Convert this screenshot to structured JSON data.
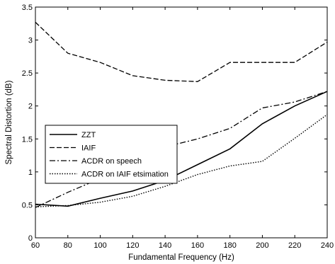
{
  "chart_data": {
    "type": "line",
    "title": "",
    "xlabel": "Fundamental Frequency (Hz)",
    "ylabel": "Spectral Distortion (dB)",
    "xlim": [
      60,
      240
    ],
    "ylim": [
      0,
      3.5
    ],
    "xticks": [
      60,
      80,
      100,
      120,
      140,
      160,
      180,
      200,
      220,
      240
    ],
    "yticks": [
      0,
      0.5,
      1,
      1.5,
      2,
      2.5,
      3,
      3.5
    ],
    "x": [
      60,
      80,
      100,
      120,
      140,
      160,
      180,
      200,
      220,
      240
    ],
    "grid": false,
    "legend_position": "middle-left",
    "series": [
      {
        "name": "ZZT",
        "style": "solid",
        "values": [
          0.51,
          0.48,
          0.6,
          0.71,
          0.87,
          1.11,
          1.35,
          1.73,
          2.0,
          2.22
        ]
      },
      {
        "name": "IAIF",
        "style": "dashed",
        "values": [
          3.27,
          2.8,
          2.66,
          2.46,
          2.39,
          2.37,
          2.66,
          2.66,
          2.66,
          2.97
        ]
      },
      {
        "name": "ACDR on speech",
        "style": "dashdot",
        "values": [
          0.46,
          0.69,
          0.9,
          1.14,
          1.38,
          1.5,
          1.66,
          1.97,
          2.06,
          2.22
        ]
      },
      {
        "name": "ACDR on IAIF etsimation",
        "style": "dotted",
        "values": [
          0.47,
          0.49,
          0.54,
          0.63,
          0.78,
          0.96,
          1.09,
          1.16,
          1.51,
          1.87
        ]
      }
    ]
  }
}
